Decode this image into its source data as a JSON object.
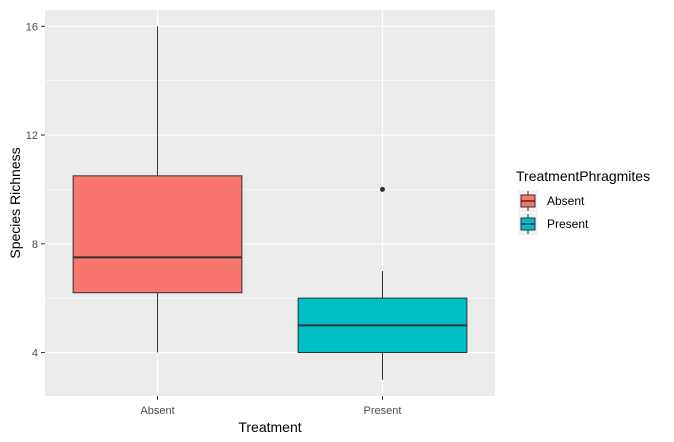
{
  "chart_data": {
    "type": "box",
    "xlabel": "Treatment",
    "ylabel": "Species Richness",
    "ylim": [
      2.4,
      16.6
    ],
    "y_ticks": [
      4,
      8,
      12,
      16
    ],
    "y_tick_labels": [
      "4",
      "8",
      "12",
      "16"
    ],
    "categories": [
      "Absent",
      "Present"
    ],
    "grid": true,
    "legend": {
      "title": "TreatmentPhragmites",
      "position": "right",
      "items": [
        {
          "label": "Absent",
          "color": "#F8766D"
        },
        {
          "label": "Present",
          "color": "#00BFC4"
        }
      ]
    },
    "boxes": [
      {
        "category": "Absent",
        "color": "#F8766D",
        "whisker_low": 4,
        "q1": 6.2,
        "median": 7.5,
        "q3": 10.5,
        "whisker_high": 16,
        "outliers": []
      },
      {
        "category": "Present",
        "color": "#00BFC4",
        "whisker_low": 3,
        "q1": 4,
        "median": 5,
        "q3": 6,
        "whisker_high": 7,
        "outliers": [
          10
        ]
      }
    ]
  },
  "colors": {
    "panel_background": "#EBEBEB",
    "grid": "#FFFFFF",
    "box_outline": "#333333"
  }
}
